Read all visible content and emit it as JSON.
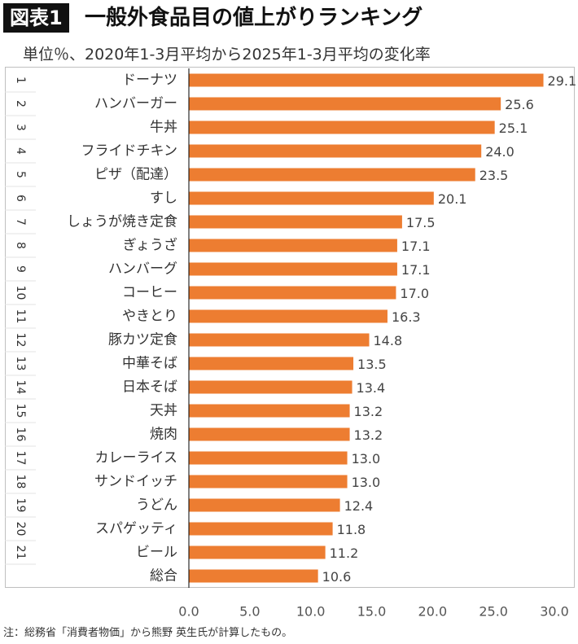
{
  "header": {
    "badge": "図表1",
    "title": "一般外食品目の値上がりランキング",
    "subtitle": "単位％、2020年1-3月平均から2025年1-3月平均の変化率"
  },
  "note": "注：総務省「消費者物価」から熊野 英生氏が計算したもの。",
  "colors": {
    "bar": "#ed7d31",
    "grid": "#d9d9d9",
    "axis": "#000000"
  },
  "chart_data": {
    "type": "bar",
    "orientation": "horizontal",
    "title": "一般外食品目の値上がりランキング",
    "xlabel": "",
    "ylabel": "",
    "xlim": [
      0,
      30
    ],
    "xticks": [
      "0.0",
      "5.0",
      "10.0",
      "15.0",
      "20.0",
      "25.0",
      "30.0"
    ],
    "ranks": [
      "1",
      "2",
      "3",
      "4",
      "5",
      "6",
      "7",
      "8",
      "9",
      "10",
      "11",
      "12",
      "13",
      "14",
      "15",
      "16",
      "17",
      "18",
      "19",
      "20",
      "21",
      ""
    ],
    "categories": [
      "ドーナツ",
      "ハンバーガー",
      "牛丼",
      "フライドチキン",
      "ピザ（配達）",
      "すし",
      "しょうが焼き定食",
      "ぎょうざ",
      "ハンバーグ",
      "コーヒー",
      "やきとり",
      "豚カツ定食",
      "中華そば",
      "日本そば",
      "天丼",
      "焼肉",
      "カレーライス",
      "サンドイッチ",
      "うどん",
      "スパゲッティ",
      "ビール",
      "総合"
    ],
    "values": [
      29.1,
      25.6,
      25.1,
      24.0,
      23.5,
      20.1,
      17.5,
      17.1,
      17.1,
      17.0,
      16.3,
      14.8,
      13.5,
      13.4,
      13.2,
      13.2,
      13.0,
      13.0,
      12.4,
      11.8,
      11.2,
      10.6
    ],
    "labels": [
      "29.1",
      "25.6",
      "25.1",
      "24.0",
      "23.5",
      "20.1",
      "17.5",
      "17.1",
      "17.1",
      "17.0",
      "16.3",
      "14.8",
      "13.5",
      "13.4",
      "13.2",
      "13.2",
      "13.0",
      "13.0",
      "12.4",
      "11.8",
      "11.2",
      "10.6"
    ],
    "grid": false
  }
}
